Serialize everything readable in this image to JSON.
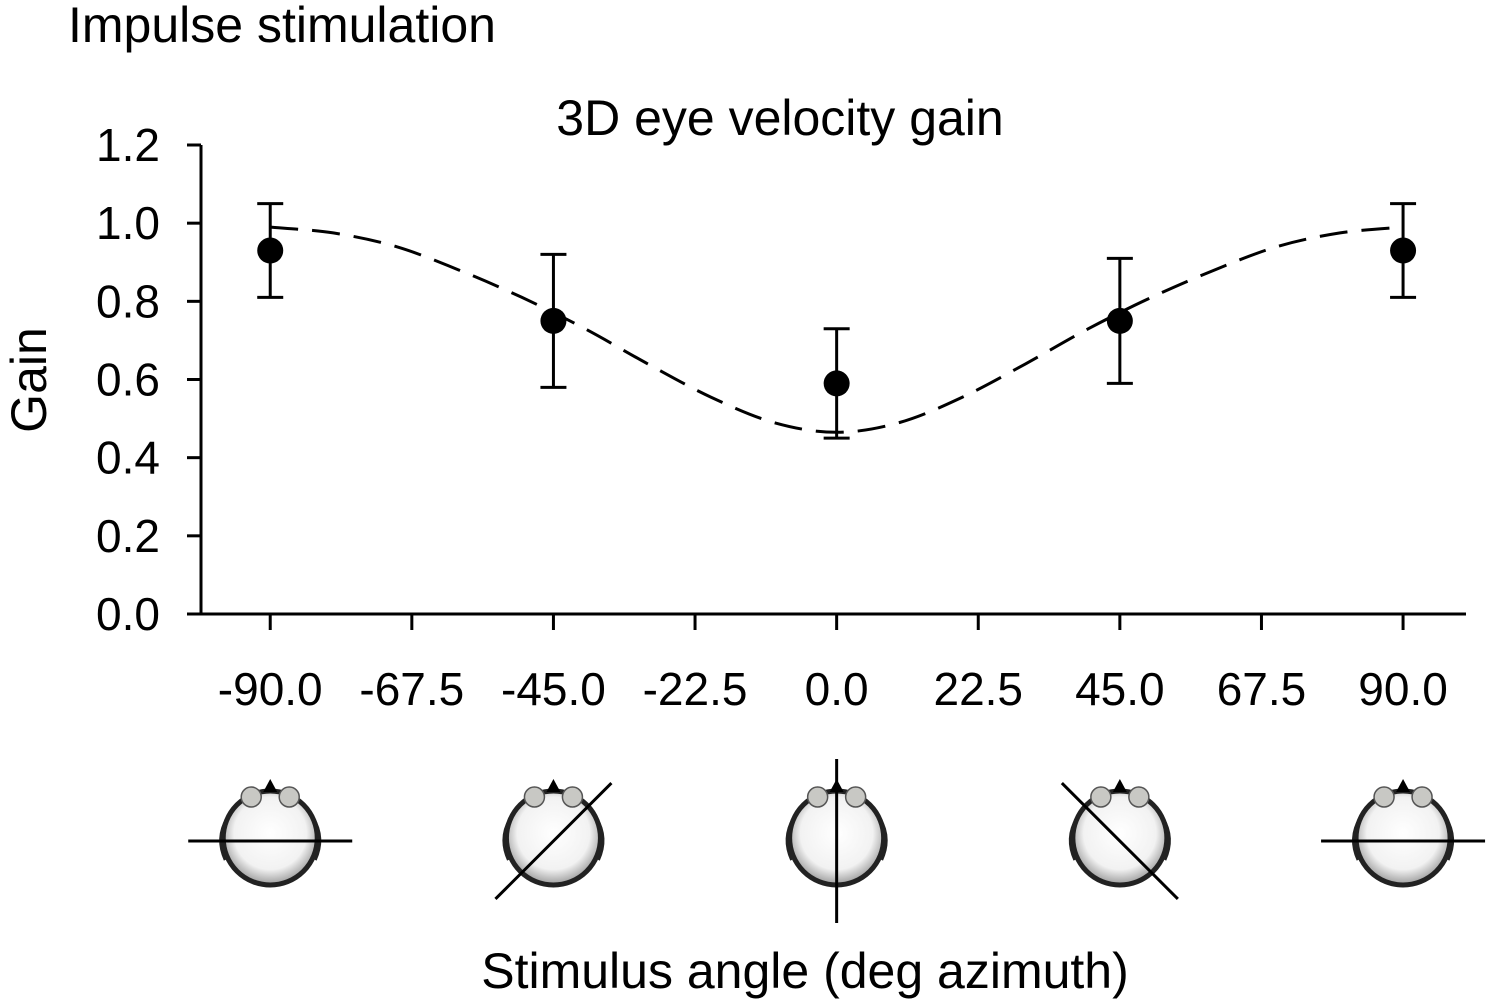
{
  "figure": {
    "panel_title": "Impulse stimulation"
  },
  "chart_data": {
    "type": "scatter",
    "title": "3D eye velocity gain",
    "xlabel": "Stimulus angle (deg azimuth)",
    "ylabel": "Gain",
    "xlim": [
      -101,
      100
    ],
    "ylim": [
      0,
      1.2
    ],
    "x_ticks": [
      -90.0,
      -67.5,
      -45.0,
      -22.5,
      0.0,
      22.5,
      45.0,
      67.5,
      90.0
    ],
    "x_tick_labels": [
      "-90.0",
      "-67.5",
      "-45.0",
      "-22.5",
      "0.0",
      "22.5",
      "45.0",
      "67.5",
      "90.0"
    ],
    "y_ticks": [
      0.0,
      0.2,
      0.4,
      0.6,
      0.8,
      1.0,
      1.2
    ],
    "y_tick_labels": [
      "0.0",
      "0.2",
      "0.4",
      "0.6",
      "0.8",
      "1.0",
      "1.2"
    ],
    "grid": false,
    "series": [
      {
        "style": "markers with error bars",
        "color": "#000000",
        "x": [
          -90,
          -45,
          0,
          45,
          90
        ],
        "y": [
          0.93,
          0.75,
          0.59,
          0.75,
          0.93
        ],
        "err_low": [
          0.81,
          0.58,
          0.45,
          0.59,
          0.81
        ],
        "err_high": [
          1.05,
          0.92,
          0.73,
          0.91,
          1.05
        ]
      },
      {
        "style": "dashed fit line",
        "color": "#000000",
        "x": [
          -90,
          -80,
          -70,
          -60,
          -50,
          -40,
          -30,
          -20,
          -10,
          0,
          10,
          20,
          30,
          40,
          50,
          60,
          70,
          80,
          90
        ],
        "y": [
          0.99,
          0.975,
          0.94,
          0.88,
          0.81,
          0.73,
          0.64,
          0.555,
          0.49,
          0.465,
          0.49,
          0.555,
          0.64,
          0.73,
          0.81,
          0.88,
          0.94,
          0.975,
          0.99
        ]
      }
    ],
    "head_icons": {
      "angles": [
        -90,
        -45,
        0,
        45,
        90
      ],
      "colors": {
        "ear": "#c8c8c4",
        "head_outline": "#222222",
        "line": "#000000"
      }
    }
  }
}
